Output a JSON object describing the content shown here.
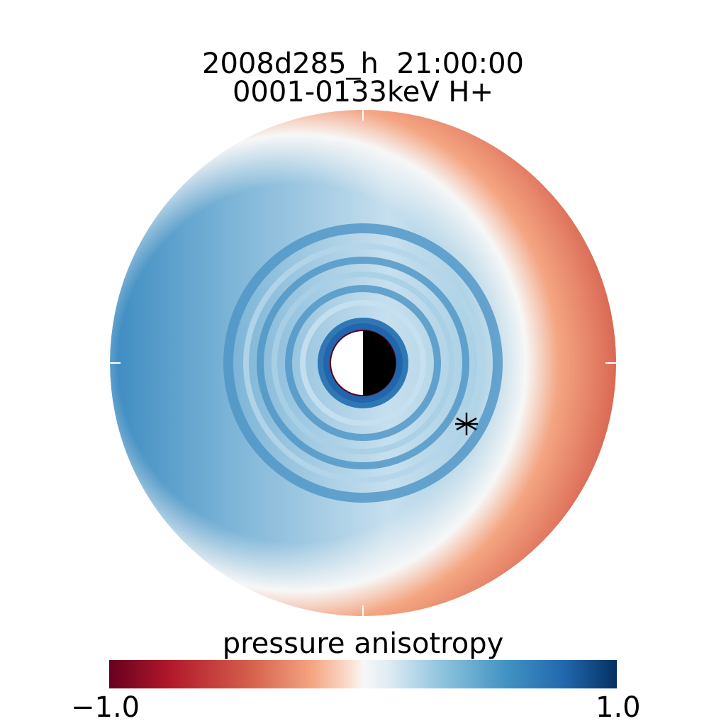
{
  "header": {
    "line1": "2008d285_h  21:00:00",
    "line2": "0001-0133keV H+"
  },
  "chart_data": {
    "type": "heatmap",
    "projection": "polar",
    "title": "2008d285_h  21:00:00",
    "subtitle": "0001-0133keV H+",
    "colorbar": {
      "label": "pressure anisotropy",
      "min": -1.0,
      "max": 1.0,
      "min_label": "−1.0",
      "max_label": "1.0",
      "colormap": "diverging red-white-blue"
    },
    "colors": {
      "neg_end": "#67001f",
      "neg_mid": "#d6604d",
      "neutral": "#f7f7f7",
      "pos_mid": "#92c5de",
      "pos_end": "#053061"
    },
    "marker": {
      "symbol": "asterisk"
    }
  }
}
